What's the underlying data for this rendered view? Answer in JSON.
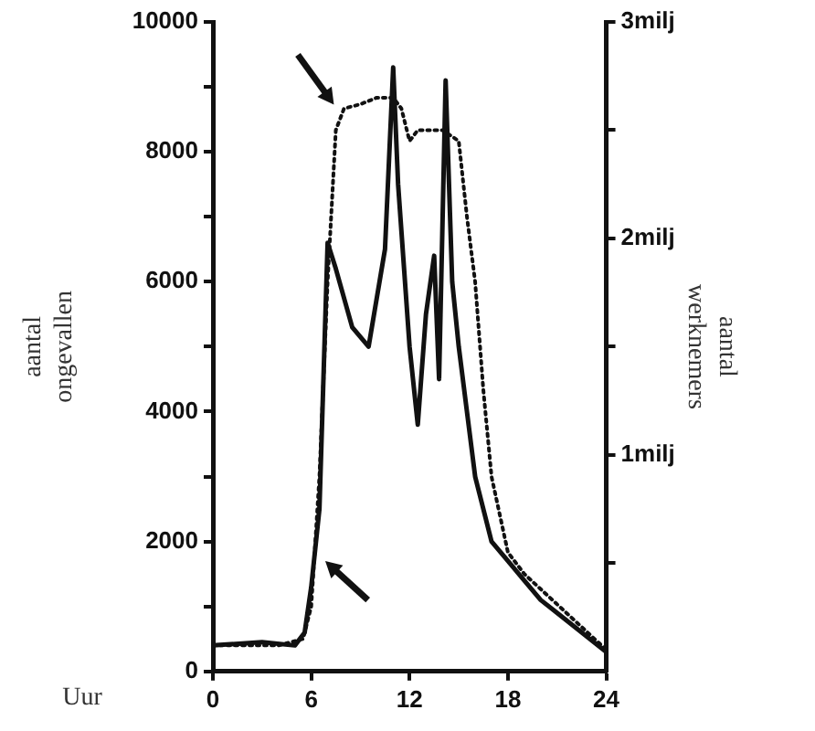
{
  "chart_data": {
    "type": "line",
    "xlabel": "Uur",
    "ylabel": "aantal\nongevallen",
    "y2label": "aantal\nwerknemers",
    "xlim": [
      0,
      24
    ],
    "xticks": [
      0,
      6,
      12,
      18,
      24
    ],
    "ylim": [
      0,
      10000
    ],
    "yticks": [
      0,
      {
        "value": 1000,
        "label": null
      },
      2000,
      {
        "value": 3000,
        "label": null
      },
      4000,
      {
        "value": 5000,
        "label": null
      },
      6000,
      {
        "value": 7000,
        "label": null
      },
      8000,
      {
        "value": 9000,
        "label": null
      },
      10000
    ],
    "y2lim": [
      0,
      3
    ],
    "y2ticks": [
      {
        "value": 0.5,
        "label": null
      },
      {
        "value": 1,
        "label": "1milj"
      },
      {
        "value": 1.5,
        "label": null
      },
      {
        "value": 2,
        "label": "2milj"
      },
      {
        "value": 2.5,
        "label": null
      },
      {
        "value": 3,
        "label": "3milj"
      }
    ],
    "grid": false,
    "legend": false,
    "marker": "none",
    "series": [
      {
        "color": "#111111",
        "line_style": "solid",
        "x": [
          0,
          3,
          5,
          5.6,
          6,
          6.5,
          7,
          7.5,
          8.5,
          9.5,
          10.5,
          11,
          11.3,
          12,
          12.5,
          13,
          13.5,
          13.8,
          14.2,
          14.6,
          15,
          15.5,
          16,
          17,
          18,
          19,
          20,
          21,
          22,
          23,
          24
        ],
        "values": [
          400,
          450,
          400,
          600,
          1300,
          2500,
          6600,
          6200,
          5300,
          5000,
          6500,
          9300,
          7500,
          5000,
          3800,
          5500,
          6400,
          4500,
          9100,
          6000,
          5000,
          4000,
          3000,
          2000,
          1700,
          1400,
          1100,
          900,
          700,
          500,
          300
        ]
      },
      {
        "color": "#111111",
        "line_style": "dotted",
        "axis": "y2",
        "x": [
          0,
          4,
          5.5,
          6,
          6.5,
          7,
          7.5,
          8,
          9,
          10,
          11,
          11.5,
          12,
          12.5,
          13,
          14,
          15,
          15.5,
          16,
          16.5,
          17,
          18,
          19,
          20,
          22,
          24
        ],
        "values": [
          0.12,
          0.12,
          0.15,
          0.3,
          0.9,
          1.8,
          2.5,
          2.6,
          2.62,
          2.65,
          2.65,
          2.6,
          2.45,
          2.5,
          2.5,
          2.5,
          2.45,
          2.1,
          1.8,
          1.3,
          0.9,
          0.55,
          0.45,
          0.38,
          0.24,
          0.1
        ]
      }
    ]
  }
}
